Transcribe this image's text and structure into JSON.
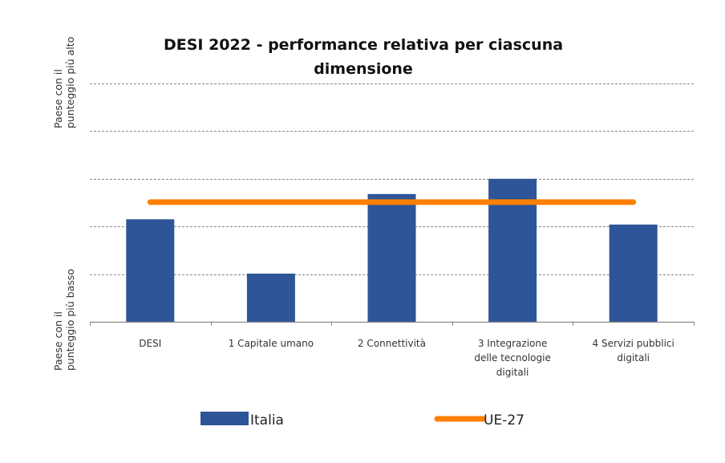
{
  "chart_data": {
    "type": "bar",
    "title": "DESI 2022 - performance relativa per ciascuna dimensione",
    "title_lines": [
      "DESI 2022 - performance relativa per ciascuna",
      "dimensione"
    ],
    "ylabel_top": [
      "Paese con il",
      "punteggio più alto"
    ],
    "ylabel_bottom": [
      "Paese con il",
      "punteggio più basso"
    ],
    "xlabel": "",
    "categories": [
      "DESI",
      "1 Capitale umano",
      "2 Connettività",
      "3 Integrazione delle tecnologie digitali",
      "4 Servizi pubblici digitali"
    ],
    "category_lines": [
      [
        "DESI"
      ],
      [
        "1 Capitale umano"
      ],
      [
        "2 Connettività"
      ],
      [
        "3 Integrazione",
        "delle tecnologie",
        "digitali"
      ],
      [
        "4 Servizi pubblici",
        "digitali"
      ]
    ],
    "ylim": [
      0,
      5
    ],
    "gridlines": [
      1,
      2,
      3,
      4,
      5
    ],
    "grid": true,
    "series": [
      {
        "name": "Italia",
        "kind": "bar",
        "color": "#2E5597",
        "values": [
          2.15,
          1.01,
          2.68,
          3.0,
          2.04
        ]
      },
      {
        "name": "UE-27",
        "kind": "line",
        "color": "#FF8000",
        "values": [
          2.51,
          2.51,
          2.51,
          2.51,
          2.51
        ]
      }
    ],
    "legend": {
      "position": "bottom",
      "entries": [
        "Italia",
        "UE-27"
      ]
    }
  }
}
